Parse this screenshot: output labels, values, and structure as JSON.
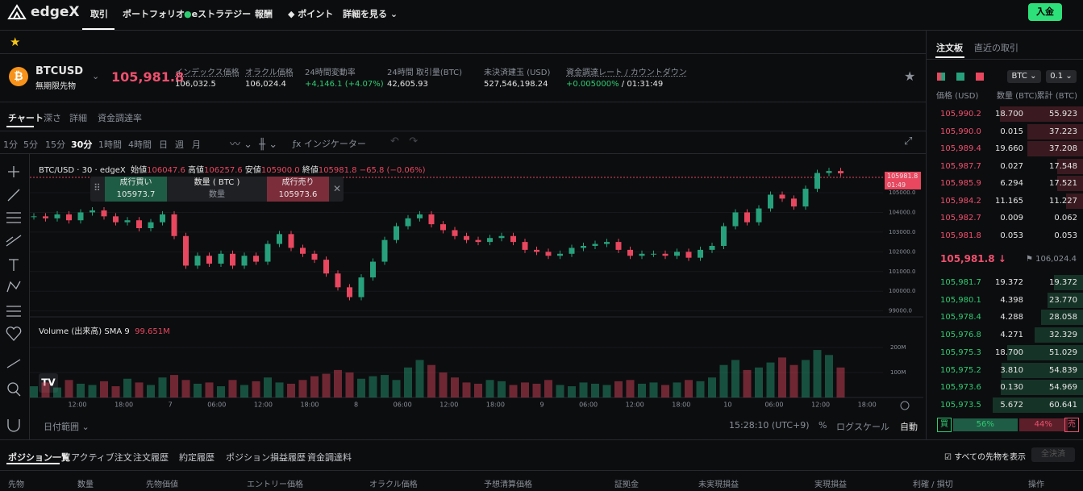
{
  "nav": {
    "logo": "edgeX",
    "items": [
      "取引",
      "ポートフォリオ",
      "eストラテジー",
      "報酬",
      "ポイント",
      "詳細を見る"
    ],
    "deposit": "入金"
  },
  "ticker": {
    "symbol": "BTCUSD",
    "subtitle": "無期限先物",
    "price": "105,981.8",
    "stats": [
      {
        "label": "インデックス価格",
        "value": "106,032.5"
      },
      {
        "label": "オラクル価格",
        "value": "106,024.4"
      },
      {
        "label": "24時間変動率",
        "value": "+4,146.1 (+4.07%)"
      },
      {
        "label": "24時間 取引量(BTC)",
        "value": "42,605.93"
      },
      {
        "label": "未決済建玉 (USD)",
        "value": "527,546,198.24"
      },
      {
        "label": "資金調達レート / カウントダウン",
        "value": "+0.005000%",
        "extra": " / 01:31:49"
      }
    ]
  },
  "chart_tabs": [
    "チャート",
    "深さ",
    "詳細",
    "資金調達率"
  ],
  "intervals": [
    "1分",
    "5分",
    "15分",
    "30分",
    "1時間",
    "4時間",
    "日",
    "週",
    "月"
  ],
  "indicator_button": "インジケーター",
  "legend": {
    "symbol": "BTC/USD · 30 · edgeX",
    "open_label": "始値",
    "open": "106047.6",
    "high_label": "高値",
    "high": "106257.6",
    "low_label": "安値",
    "low": "105900.0",
    "close_label": "終値",
    "close": "105981.8",
    "change": "−65.8 (−0.06%)"
  },
  "order_widget": {
    "buy_label": "成行買い",
    "buy_price": "105973.7",
    "qty_label": "数量 ( BTC )",
    "qty_placeholder": "数量",
    "sell_label": "成行売り",
    "sell_price": "105973.6"
  },
  "price_tag": {
    "price": "105981.8",
    "countdown": "01:49"
  },
  "volume_legend": {
    "label": "Volume (出来高) SMA 9",
    "value": "99.651M"
  },
  "chart": {
    "type": "candlestick",
    "x_labels": [
      "12:00",
      "18:00",
      "7",
      "06:00",
      "12:00",
      "18:00",
      "8",
      "06:00",
      "12:00",
      "18:00",
      "9",
      "06:00",
      "12:00",
      "18:00",
      "10",
      "06:00",
      "12:00",
      "18:00"
    ],
    "closes": [
      103800,
      103700,
      103900,
      103600,
      104000,
      104100,
      103800,
      103500,
      103600,
      103200,
      103500,
      103900,
      102800,
      101300,
      101800,
      101400,
      101900,
      101300,
      101800,
      101500,
      102400,
      102900,
      102200,
      101900,
      101600,
      100900,
      100200,
      99700,
      100700,
      101500,
      102600,
      103300,
      103700,
      103900,
      103400,
      103100,
      102800,
      102600,
      102500,
      102700,
      102800,
      102500,
      102100,
      102000,
      101800,
      101900,
      102200,
      102300,
      102400,
      102500,
      102100,
      101800,
      101900,
      101900,
      101800,
      102000,
      101700,
      102100,
      102300,
      103300,
      104000,
      103500,
      104200,
      104900,
      104700,
      104300,
      105200,
      106000,
      106100,
      105981.8
    ],
    "volumes": [
      45,
      60,
      40,
      70,
      55,
      50,
      65,
      45,
      75,
      60,
      50,
      80,
      90,
      70,
      55,
      60,
      45,
      70,
      50,
      65,
      80,
      60,
      55,
      70,
      85,
      95,
      110,
      100,
      75,
      85,
      90,
      70,
      120,
      150,
      130,
      100,
      80,
      60,
      55,
      70,
      65,
      50,
      60,
      55,
      70,
      50,
      45,
      60,
      55,
      50,
      65,
      70,
      55,
      60,
      50,
      60,
      70,
      65,
      80,
      130,
      150,
      110,
      120,
      140,
      160,
      130,
      150,
      190,
      170,
      120
    ],
    "ylim": [
      98700,
      106800
    ],
    "yticks": [
      {
        "value": 99000,
        "label": "99000.0"
      },
      {
        "value": 100000,
        "label": "100000.0"
      },
      {
        "value": 101000,
        "label": "101000.0"
      },
      {
        "value": 102000,
        "label": "102000.0"
      },
      {
        "value": 103000,
        "label": "103000.0"
      },
      {
        "value": 104000,
        "label": "104000.0"
      },
      {
        "value": 105000,
        "label": "105000.0"
      }
    ],
    "vol_ylim": [
      0,
      300
    ],
    "vol_yticks": [
      {
        "value": 100,
        "label": "100M"
      },
      {
        "value": 200,
        "label": "200M"
      }
    ],
    "up_color": "#26a17b",
    "down_color": "#e8475f"
  },
  "chart_footer": {
    "range": "日付範囲",
    "clock": "15:28:10 (UTC+9)",
    "percent": "%",
    "log": "ログスケール",
    "auto": "自動"
  },
  "orderbook": {
    "tabs": [
      "注文板",
      "直近の取引"
    ],
    "asset": "BTC",
    "step": "0.1",
    "headers": [
      "価格 (USD)",
      "数量 (BTC)",
      "累計 (BTC)"
    ],
    "asks": [
      [
        "105,990.2",
        "18.700",
        "55.923"
      ],
      [
        "105,990.0",
        "0.015",
        "37.223"
      ],
      [
        "105,989.4",
        "19.660",
        "37.208"
      ],
      [
        "105,987.7",
        "0.027",
        "17.548"
      ],
      [
        "105,985.9",
        "6.294",
        "17.521"
      ],
      [
        "105,984.2",
        "11.165",
        "11.227"
      ],
      [
        "105,982.7",
        "0.009",
        "0.062"
      ],
      [
        "105,981.8",
        "0.053",
        "0.053"
      ]
    ],
    "mid_price": "105,981.8 ↓",
    "mark_price": "106,024.4",
    "bids": [
      [
        "105,981.7",
        "19.372",
        "19.372"
      ],
      [
        "105,980.1",
        "4.398",
        "23.770"
      ],
      [
        "105,978.4",
        "4.288",
        "28.058"
      ],
      [
        "105,976.8",
        "4.271",
        "32.329"
      ],
      [
        "105,975.3",
        "18.700",
        "51.029"
      ],
      [
        "105,975.2",
        "3.810",
        "54.839"
      ],
      [
        "105,973.6",
        "0.130",
        "54.969"
      ],
      [
        "105,973.5",
        "5.672",
        "60.641"
      ]
    ],
    "buy_label": "買",
    "buy_pct": 56,
    "buy_pct_label": "56%",
    "sell_pct_label": "44%",
    "sell_label": "売"
  },
  "positions": {
    "tabs": [
      "ポジション一覧",
      "アクティブ注文",
      "注文履歴",
      "約定履歴",
      "ポジション損益履歴",
      "資金調達料"
    ],
    "show_all": "すべての先物を表示",
    "close_all": "全決済",
    "columns": [
      "先物",
      "数量",
      "先物価値",
      "エントリー価格",
      "オラクル価格",
      "予想清算価格",
      "証拠金",
      "未実現損益",
      "実現損益",
      "利確 / 損切",
      "操作"
    ]
  }
}
